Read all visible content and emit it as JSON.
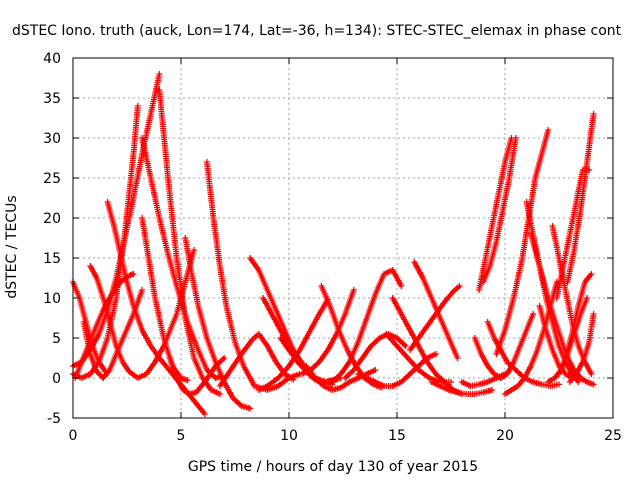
{
  "chart_data": {
    "type": "scatter",
    "title": "dSTEC Iono. truth (auck, Lon=174, Lat=-36, h=134): STEC-STEC_elemax in phase cont",
    "xlabel": "GPS time / hours of day 130 of year 2015",
    "ylabel": "dSTEC  / TECUs",
    "xlim": [
      0,
      25
    ],
    "ylim": [
      -5,
      40
    ],
    "x_ticks": [
      0,
      5,
      10,
      15,
      20,
      25
    ],
    "y_ticks": [
      -5,
      0,
      5,
      10,
      15,
      20,
      25,
      30,
      35,
      40
    ],
    "grid": true,
    "marker": "plus",
    "color": "#ff0000",
    "series": [
      {
        "x": [
          0.0,
          0.4,
          0.8,
          1.2,
          1.6,
          2.0,
          2.4,
          2.8,
          3.0
        ],
        "y": [
          0.5,
          0.0,
          0.5,
          2.0,
          5.0,
          10.0,
          18.0,
          28.0,
          34.0
        ]
      },
      {
        "x": [
          0.0,
          0.4,
          0.8,
          1.2,
          1.6,
          2.0,
          2.4,
          2.8,
          3.2,
          3.6,
          4.0
        ],
        "y": [
          1.5,
          2.0,
          3.5,
          5.5,
          8.5,
          12.5,
          17.5,
          22.5,
          28.0,
          33.0,
          38.0
        ]
      },
      {
        "x": [
          0.0,
          0.3,
          0.6,
          0.9,
          1.2,
          1.5
        ],
        "y": [
          12.0,
          10.0,
          7.0,
          4.0,
          2.0,
          0.8
        ]
      },
      {
        "x": [
          0.5,
          0.8,
          1.1,
          1.4,
          1.7,
          2.0,
          2.4,
          2.8,
          3.2
        ],
        "y": [
          7.0,
          3.0,
          0.8,
          0.0,
          1.0,
          3.0,
          5.5,
          8.0,
          11.0
        ]
      },
      {
        "x": [
          0.1,
          0.4,
          0.7,
          1.0,
          1.4,
          1.8,
          2.2,
          2.6,
          2.8
        ],
        "y": [
          0.0,
          2.0,
          4.0,
          6.0,
          8.5,
          10.5,
          12.0,
          12.8,
          13.0
        ]
      },
      {
        "x": [
          0.8,
          1.1,
          1.4,
          1.7,
          2.0,
          2.3,
          2.6,
          3.0,
          3.4,
          3.8,
          4.2,
          4.8,
          5.3,
          5.6
        ],
        "y": [
          14.0,
          12.5,
          10.0,
          7.0,
          4.0,
          2.0,
          0.8,
          0.0,
          0.5,
          2.0,
          4.0,
          8.0,
          13.0,
          16.0
        ]
      },
      {
        "x": [
          1.6,
          1.9,
          2.2,
          2.5,
          2.8,
          3.2,
          3.6,
          4.0,
          4.6,
          5.2,
          5.8,
          6.1
        ],
        "y": [
          22.0,
          19.0,
          15.5,
          12.0,
          9.0,
          6.0,
          4.0,
          2.5,
          0.5,
          -1.5,
          -3.5,
          -4.5
        ]
      },
      {
        "x": [
          3.2,
          3.6,
          4.0,
          4.4,
          4.8,
          5.3,
          5.8,
          6.2,
          6.6,
          6.9
        ],
        "y": [
          30.0,
          25.0,
          20.0,
          15.5,
          11.5,
          7.0,
          3.5,
          1.0,
          0.0,
          0.2
        ]
      },
      {
        "x": [
          4.0,
          4.4,
          4.8,
          5.2,
          5.6,
          6.0,
          6.4,
          6.8
        ],
        "y": [
          36.0,
          25.0,
          15.0,
          7.5,
          2.5,
          0.0,
          -1.5,
          -2.0
        ]
      },
      {
        "x": [
          3.2,
          3.5,
          3.8,
          4.2,
          4.6,
          5.0,
          5.3
        ],
        "y": [
          20.0,
          15.0,
          10.0,
          5.0,
          1.5,
          0.0,
          -0.3
        ]
      },
      {
        "x": [
          4.5,
          4.8,
          5.1,
          5.4,
          5.7,
          6.1,
          6.6,
          7.0
        ],
        "y": [
          2.5,
          0.0,
          -1.5,
          -2.0,
          -1.8,
          -0.5,
          1.5,
          2.5
        ]
      },
      {
        "x": [
          5.2,
          5.5,
          5.8,
          6.2,
          6.6,
          7.0,
          7.4,
          7.8,
          8.2
        ],
        "y": [
          17.5,
          13.0,
          9.0,
          5.0,
          2.0,
          -0.5,
          -2.5,
          -3.5,
          -3.8
        ]
      },
      {
        "x": [
          6.2,
          6.5,
          6.8,
          7.1,
          7.5,
          7.9,
          8.4,
          9.0,
          9.5,
          10.0,
          10.5
        ],
        "y": [
          27.0,
          20.0,
          14.0,
          9.0,
          4.5,
          1.5,
          -1.0,
          -1.5,
          -1.0,
          0.0,
          0.5
        ]
      },
      {
        "x": [
          6.8,
          7.3,
          7.8,
          8.3,
          8.6,
          9.0,
          9.4,
          9.8,
          10.2
        ],
        "y": [
          -1.0,
          1.0,
          3.0,
          4.8,
          5.5,
          4.0,
          2.0,
          0.5,
          -0.2
        ]
      },
      {
        "x": [
          8.2,
          8.6,
          9.0,
          9.4,
          9.8,
          10.2,
          10.7,
          11.2,
          11.7,
          12.2
        ],
        "y": [
          15.0,
          13.5,
          11.0,
          8.5,
          6.0,
          3.5,
          1.5,
          0.0,
          -0.5,
          -0.2
        ]
      },
      {
        "x": [
          8.6,
          9.0,
          9.5,
          10.0,
          10.5,
          11.0,
          11.4,
          11.8
        ],
        "y": [
          -1.5,
          -1.0,
          0.0,
          1.5,
          3.5,
          6.0,
          8.0,
          9.8
        ]
      },
      {
        "x": [
          8.8,
          9.2,
          9.6,
          10.0,
          10.4,
          10.8,
          11.2,
          11.6,
          12.0
        ],
        "y": [
          10.0,
          8.0,
          6.0,
          4.0,
          2.5,
          1.0,
          0.0,
          -0.5,
          -0.8
        ]
      },
      {
        "x": [
          9.6,
          10.0,
          10.4,
          10.8,
          11.2,
          11.6,
          12.0,
          12.4
        ],
        "y": [
          5.0,
          3.5,
          2.0,
          0.8,
          -0.2,
          -0.5,
          -0.3,
          0.0
        ]
      },
      {
        "x": [
          10.6,
          11.0,
          11.4,
          11.8,
          12.2,
          12.6,
          13.0
        ],
        "y": [
          0.5,
          1.0,
          2.0,
          3.5,
          5.5,
          8.0,
          11.0
        ]
      },
      {
        "x": [
          10.8,
          11.2,
          11.6,
          12.0,
          12.4,
          12.8,
          13.2,
          13.6,
          14.0
        ],
        "y": [
          1.5,
          0.0,
          -1.0,
          -1.5,
          -1.2,
          -0.5,
          0.0,
          0.5,
          1.0
        ]
      },
      {
        "x": [
          11.5,
          11.9,
          12.3,
          12.7,
          13.1,
          13.5,
          13.9,
          14.3
        ],
        "y": [
          11.5,
          9.0,
          6.0,
          3.5,
          1.5,
          0.0,
          -0.8,
          -1.2
        ]
      },
      {
        "x": [
          12.0,
          12.4,
          12.8,
          13.2,
          13.6,
          14.0,
          14.4,
          14.8,
          15.2
        ],
        "y": [
          -0.5,
          0.5,
          2.0,
          4.5,
          7.5,
          10.5,
          13.0,
          13.5,
          11.5
        ]
      },
      {
        "x": [
          12.6,
          13.0,
          13.4,
          13.8,
          14.2,
          14.6,
          15.0,
          15.4
        ],
        "y": [
          0.0,
          1.0,
          2.5,
          4.0,
          5.0,
          5.5,
          5.0,
          4.0
        ]
      },
      {
        "x": [
          13.2,
          13.6,
          14.0,
          14.4,
          14.8,
          15.2,
          15.6,
          16.0,
          16.4,
          16.8
        ],
        "y": [
          0.5,
          0.0,
          -0.5,
          -1.0,
          -1.0,
          -0.5,
          0.5,
          1.5,
          2.5,
          3.0
        ]
      },
      {
        "x": [
          14.5,
          15.0,
          15.5,
          16.0,
          16.5,
          17.0,
          17.5
        ],
        "y": [
          5.5,
          4.0,
          2.5,
          1.0,
          0.0,
          -0.5,
          -0.5
        ]
      },
      {
        "x": [
          14.8,
          15.2,
          15.6,
          16.0,
          16.4,
          16.8,
          17.2,
          17.6,
          18.0
        ],
        "y": [
          10.0,
          8.0,
          6.0,
          4.0,
          2.0,
          0.5,
          -0.5,
          -1.5,
          -2.0
        ]
      },
      {
        "x": [
          15.8,
          16.2,
          16.6,
          17.0,
          17.4,
          17.8
        ],
        "y": [
          14.5,
          12.5,
          10.0,
          7.5,
          5.0,
          2.5
        ]
      },
      {
        "x": [
          15.6,
          16.0,
          16.4,
          16.8,
          17.2,
          17.6,
          17.9
        ],
        "y": [
          3.5,
          5.0,
          6.5,
          8.0,
          9.5,
          10.8,
          11.5
        ]
      },
      {
        "x": [
          16.6,
          17.0,
          17.4,
          17.8,
          18.2,
          18.6,
          19.0,
          19.4
        ],
        "y": [
          -0.5,
          -1.0,
          -1.5,
          -1.8,
          -2.0,
          -2.0,
          -1.8,
          -1.5
        ]
      },
      {
        "x": [
          18.0,
          18.4,
          18.8,
          19.2,
          19.6,
          20.0
        ],
        "y": [
          -0.5,
          -1.0,
          -0.8,
          -0.5,
          0.0,
          0.5
        ]
      },
      {
        "x": [
          18.6,
          18.9,
          19.2,
          19.5,
          19.8,
          20.1,
          20.4,
          20.7,
          21.0,
          21.3
        ],
        "y": [
          5.0,
          3.0,
          1.5,
          0.5,
          0.0,
          0.5,
          2.0,
          4.0,
          6.0,
          8.0
        ]
      },
      {
        "x": [
          18.8,
          19.1,
          19.4,
          19.7,
          20.0,
          20.3
        ],
        "y": [
          11.0,
          15.0,
          19.0,
          23.0,
          27.0,
          30.0
        ]
      },
      {
        "x": [
          19.0,
          19.3,
          19.6,
          19.9,
          20.2,
          20.5
        ],
        "y": [
          12.0,
          14.0,
          17.0,
          21.0,
          25.0,
          30.0
        ]
      },
      {
        "x": [
          19.2,
          19.5,
          19.8,
          20.1,
          20.5,
          20.9,
          21.3,
          21.7,
          22.1,
          22.5
        ],
        "y": [
          7.0,
          5.0,
          3.5,
          2.0,
          1.0,
          0.0,
          -0.5,
          -0.8,
          -1.0,
          -0.8
        ]
      },
      {
        "x": [
          20.0,
          20.3,
          20.6,
          20.9,
          21.2,
          21.5,
          21.8,
          22.1,
          22.4
        ],
        "y": [
          -2.0,
          -1.5,
          -1.0,
          0.0,
          1.5,
          3.5,
          6.0,
          9.0,
          12.0
        ]
      },
      {
        "x": [
          19.6,
          20.0,
          20.4,
          20.8,
          21.1,
          21.4,
          21.7,
          22.0
        ],
        "y": [
          3.0,
          6.0,
          10.0,
          15.0,
          20.0,
          25.0,
          28.0,
          31.0
        ]
      },
      {
        "x": [
          21.0,
          21.3,
          21.6,
          21.9,
          22.2,
          22.5,
          22.8,
          23.1,
          23.4
        ],
        "y": [
          22.0,
          18.0,
          14.0,
          10.0,
          7.0,
          4.0,
          2.0,
          0.5,
          -0.5
        ]
      },
      {
        "x": [
          21.2,
          21.5,
          21.8,
          22.1,
          22.4,
          22.7,
          23.0,
          23.3
        ],
        "y": [
          18.0,
          15.0,
          12.0,
          9.0,
          6.5,
          4.0,
          2.0,
          0.5
        ]
      },
      {
        "x": [
          21.6,
          21.9,
          22.2,
          22.5,
          22.8,
          23.1
        ],
        "y": [
          9.0,
          6.0,
          3.5,
          1.5,
          0.5,
          0.0
        ]
      },
      {
        "x": [
          22.0,
          22.3,
          22.6,
          22.9,
          23.2,
          23.5,
          23.8
        ],
        "y": [
          -0.5,
          0.0,
          1.0,
          3.0,
          5.5,
          8.0,
          10.0
        ]
      },
      {
        "x": [
          22.2,
          22.5,
          22.8,
          23.1,
          23.4,
          23.7,
          24.0
        ],
        "y": [
          19.0,
          15.0,
          11.0,
          7.0,
          4.0,
          2.0,
          0.5
        ]
      },
      {
        "x": [
          22.4,
          22.7,
          23.0,
          23.3,
          23.6,
          23.9
        ],
        "y": [
          10.0,
          14.0,
          18.0,
          22.0,
          26.0,
          26.0
        ]
      },
      {
        "x": [
          22.5,
          22.8,
          23.1,
          23.4,
          23.7,
          24.0
        ],
        "y": [
          0.5,
          2.5,
          5.5,
          9.0,
          12.0,
          13.0
        ]
      },
      {
        "x": [
          22.9,
          23.2,
          23.5,
          23.8,
          24.1
        ],
        "y": [
          12.0,
          16.0,
          21.0,
          27.0,
          33.0
        ]
      },
      {
        "x": [
          23.0,
          23.3,
          23.6,
          23.9,
          24.1
        ],
        "y": [
          -0.5,
          0.5,
          2.0,
          4.5,
          8.0
        ]
      },
      {
        "x": [
          23.2,
          23.5,
          23.8,
          24.1
        ],
        "y": [
          1.0,
          0.0,
          -0.5,
          -0.8
        ]
      }
    ]
  }
}
